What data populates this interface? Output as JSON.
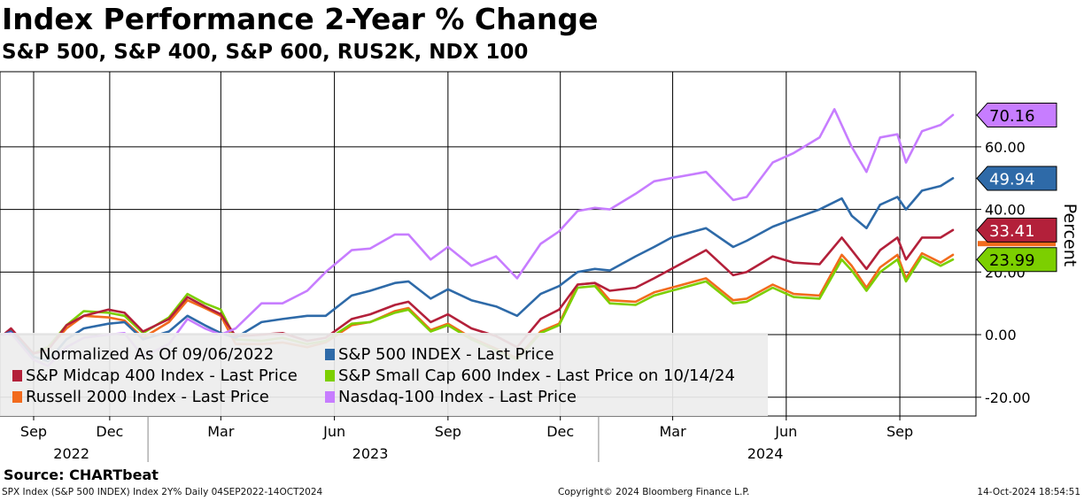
{
  "title": "Index Performance 2-Year % Change",
  "subtitle": "S&P 500, S&P 400, S&P 600, RUS2K, NDX 100",
  "source": "Source: CHARTbeat",
  "footer": {
    "left": "SPX Index (S&P 500 INDEX) Index 2Y%  Daily 04SEP2022-14OCT2024",
    "middle": "Copyright© 2024 Bloomberg Finance L.P.",
    "right": "14-Oct-2024 18:54:51"
  },
  "legend_note": "Normalized As Of 09/06/2022",
  "chart_data": {
    "type": "line",
    "title": "Index Performance 2-Year % Change",
    "subtitle": "S&P 500, S&P 400, S&P 600, RUS2K, NDX 100",
    "ylabel": "Percent",
    "ylim": [
      -26,
      84
    ],
    "yticks": [
      -20,
      0,
      20,
      40,
      60
    ],
    "ytick_labels": [
      "-20.00",
      "0.00",
      "20.00",
      "40.00",
      "60.00"
    ],
    "xlim": [
      "2022-09-06",
      "2024-10-14"
    ],
    "month_ticks": [
      {
        "date": "2022-09-01",
        "label": "Sep"
      },
      {
        "date": "2022-12-01",
        "label": "Dec"
      },
      {
        "date": "2023-03-01",
        "label": "Mar"
      },
      {
        "date": "2023-06-01",
        "label": "Jun"
      },
      {
        "date": "2023-09-01",
        "label": "Sep"
      },
      {
        "date": "2023-12-01",
        "label": "Dec"
      },
      {
        "date": "2024-03-01",
        "label": "Mar"
      },
      {
        "date": "2024-06-01",
        "label": "Jun"
      },
      {
        "date": "2024-09-01",
        "label": "Sep"
      }
    ],
    "year_labels": [
      {
        "date": "2022-10-31",
        "label": "2022"
      },
      {
        "date": "2023-06-30",
        "label": "2023"
      },
      {
        "date": "2024-05-15",
        "label": "2024"
      }
    ],
    "year_dividers": [
      "2023-01-01",
      "2024-01-01"
    ],
    "grid": true,
    "legend_position": "bottom-left",
    "series": [
      {
        "name": "S&P 500 INDEX - Last Price",
        "color": "#2e6aa8",
        "last_value": 49.94,
        "last_label": "49.94",
        "label_text_color": "#ffffff",
        "points": [
          [
            "2022-09-06",
            0
          ],
          [
            "2022-09-12",
            1
          ],
          [
            "2022-09-30",
            -7
          ],
          [
            "2022-10-12",
            -8.5
          ],
          [
            "2022-10-27",
            -1.5
          ],
          [
            "2022-11-10",
            2
          ],
          [
            "2022-11-30",
            3.5
          ],
          [
            "2022-12-13",
            4
          ],
          [
            "2022-12-28",
            -1.5
          ],
          [
            "2023-01-18",
            1
          ],
          [
            "2023-02-02",
            6
          ],
          [
            "2023-02-16",
            3
          ],
          [
            "2023-03-01",
            0.5
          ],
          [
            "2023-03-13",
            -1
          ],
          [
            "2023-04-03",
            4
          ],
          [
            "2023-04-20",
            5
          ],
          [
            "2023-05-10",
            6
          ],
          [
            "2023-05-25",
            6
          ],
          [
            "2023-06-15",
            12.5
          ],
          [
            "2023-06-30",
            14
          ],
          [
            "2023-07-20",
            16.5
          ],
          [
            "2023-07-31",
            17
          ],
          [
            "2023-08-18",
            11.5
          ],
          [
            "2023-09-01",
            14.5
          ],
          [
            "2023-09-20",
            11
          ],
          [
            "2023-10-10",
            9
          ],
          [
            "2023-10-27",
            6
          ],
          [
            "2023-11-15",
            13
          ],
          [
            "2023-11-30",
            15.5
          ],
          [
            "2023-12-15",
            20
          ],
          [
            "2023-12-29",
            21
          ],
          [
            "2024-01-10",
            20.5
          ],
          [
            "2024-01-31",
            25
          ],
          [
            "2024-02-15",
            28
          ],
          [
            "2024-02-29",
            31
          ],
          [
            "2024-03-28",
            34
          ],
          [
            "2024-04-19",
            28
          ],
          [
            "2024-04-30",
            30
          ],
          [
            "2024-05-21",
            34.5
          ],
          [
            "2024-06-07",
            37
          ],
          [
            "2024-06-28",
            40
          ],
          [
            "2024-07-16",
            43.5
          ],
          [
            "2024-07-24",
            38
          ],
          [
            "2024-08-05",
            34
          ],
          [
            "2024-08-16",
            41.5
          ],
          [
            "2024-08-30",
            44
          ],
          [
            "2024-09-06",
            40
          ],
          [
            "2024-09-19",
            46
          ],
          [
            "2024-10-04",
            47.5
          ],
          [
            "2024-10-14",
            49.94
          ]
        ]
      },
      {
        "name": "S&P Midcap 400 Index - Last Price",
        "color": "#b3203a",
        "last_value": 33.41,
        "last_label": "33.41",
        "label_text_color": "#ffffff",
        "points": [
          [
            "2022-09-06",
            0
          ],
          [
            "2022-09-12",
            2
          ],
          [
            "2022-09-30",
            -6
          ],
          [
            "2022-10-12",
            -5
          ],
          [
            "2022-10-27",
            3
          ],
          [
            "2022-11-10",
            6
          ],
          [
            "2022-11-30",
            8
          ],
          [
            "2022-12-13",
            7
          ],
          [
            "2022-12-28",
            1
          ],
          [
            "2023-01-18",
            5
          ],
          [
            "2023-02-02",
            12
          ],
          [
            "2023-02-16",
            9
          ],
          [
            "2023-03-01",
            6.5
          ],
          [
            "2023-03-13",
            -0.5
          ],
          [
            "2023-04-03",
            0
          ],
          [
            "2023-04-20",
            0.5
          ],
          [
            "2023-05-10",
            -2
          ],
          [
            "2023-05-25",
            -1
          ],
          [
            "2023-06-15",
            5
          ],
          [
            "2023-06-30",
            6.5
          ],
          [
            "2023-07-20",
            9.5
          ],
          [
            "2023-07-31",
            10.5
          ],
          [
            "2023-08-18",
            4
          ],
          [
            "2023-09-01",
            6.5
          ],
          [
            "2023-09-20",
            2
          ],
          [
            "2023-10-10",
            -0.5
          ],
          [
            "2023-10-27",
            -4
          ],
          [
            "2023-11-15",
            5
          ],
          [
            "2023-11-30",
            8
          ],
          [
            "2023-12-15",
            16
          ],
          [
            "2023-12-29",
            16.5
          ],
          [
            "2024-01-10",
            14
          ],
          [
            "2024-01-31",
            15
          ],
          [
            "2024-02-15",
            18
          ],
          [
            "2024-02-29",
            21
          ],
          [
            "2024-03-28",
            27
          ],
          [
            "2024-04-19",
            19
          ],
          [
            "2024-04-30",
            20
          ],
          [
            "2024-05-21",
            25
          ],
          [
            "2024-06-07",
            23
          ],
          [
            "2024-06-28",
            22.5
          ],
          [
            "2024-07-16",
            31
          ],
          [
            "2024-07-24",
            27
          ],
          [
            "2024-08-05",
            21
          ],
          [
            "2024-08-16",
            27
          ],
          [
            "2024-08-30",
            31
          ],
          [
            "2024-09-06",
            24
          ],
          [
            "2024-09-19",
            31
          ],
          [
            "2024-10-04",
            31
          ],
          [
            "2024-10-14",
            33.41
          ]
        ]
      },
      {
        "name": "S&P Small Cap 600 Index - Last Price on 10/14/24",
        "color": "#7ccf00",
        "last_value": 23.99,
        "last_label": "23.99",
        "label_text_color": "#000000",
        "points": [
          [
            "2022-09-06",
            0
          ],
          [
            "2022-09-12",
            1.5
          ],
          [
            "2022-09-30",
            -6
          ],
          [
            "2022-10-12",
            -4
          ],
          [
            "2022-10-27",
            3
          ],
          [
            "2022-11-10",
            7.5
          ],
          [
            "2022-11-30",
            7
          ],
          [
            "2022-12-13",
            6
          ],
          [
            "2022-12-28",
            0.5
          ],
          [
            "2023-01-18",
            5.5
          ],
          [
            "2023-02-02",
            13
          ],
          [
            "2023-02-16",
            10
          ],
          [
            "2023-03-01",
            8
          ],
          [
            "2023-03-13",
            -1.5
          ],
          [
            "2023-04-03",
            -2
          ],
          [
            "2023-04-20",
            -1
          ],
          [
            "2023-05-10",
            -3
          ],
          [
            "2023-05-25",
            -2
          ],
          [
            "2023-06-15",
            3.5
          ],
          [
            "2023-06-30",
            4
          ],
          [
            "2023-07-20",
            7
          ],
          [
            "2023-07-31",
            8
          ],
          [
            "2023-08-18",
            1
          ],
          [
            "2023-09-01",
            3
          ],
          [
            "2023-09-20",
            -1.5
          ],
          [
            "2023-10-10",
            -5
          ],
          [
            "2023-10-27",
            -8
          ],
          [
            "2023-11-15",
            0.5
          ],
          [
            "2023-11-30",
            3
          ],
          [
            "2023-12-15",
            15
          ],
          [
            "2023-12-29",
            15.5
          ],
          [
            "2024-01-10",
            10
          ],
          [
            "2024-01-31",
            9.5
          ],
          [
            "2024-02-15",
            12.5
          ],
          [
            "2024-02-29",
            14
          ],
          [
            "2024-03-28",
            17
          ],
          [
            "2024-04-19",
            10
          ],
          [
            "2024-04-30",
            10.5
          ],
          [
            "2024-05-21",
            15
          ],
          [
            "2024-06-07",
            12
          ],
          [
            "2024-06-28",
            11.5
          ],
          [
            "2024-07-16",
            24
          ],
          [
            "2024-07-24",
            20.5
          ],
          [
            "2024-08-05",
            14
          ],
          [
            "2024-08-16",
            20
          ],
          [
            "2024-08-30",
            24
          ],
          [
            "2024-09-06",
            17
          ],
          [
            "2024-09-19",
            25
          ],
          [
            "2024-10-04",
            22
          ],
          [
            "2024-10-14",
            23.99
          ]
        ]
      },
      {
        "name": "Russell 2000 Index - Last Price",
        "color": "#f26b1d",
        "last_value": null,
        "points": [
          [
            "2022-09-06",
            0
          ],
          [
            "2022-09-12",
            1
          ],
          [
            "2022-09-30",
            -6
          ],
          [
            "2022-10-12",
            -4.5
          ],
          [
            "2022-10-27",
            2
          ],
          [
            "2022-11-10",
            6
          ],
          [
            "2022-11-30",
            5.5
          ],
          [
            "2022-12-13",
            4.5
          ],
          [
            "2022-12-28",
            -1
          ],
          [
            "2023-01-18",
            4
          ],
          [
            "2023-02-02",
            11
          ],
          [
            "2023-02-16",
            8.5
          ],
          [
            "2023-03-01",
            6
          ],
          [
            "2023-03-13",
            -3
          ],
          [
            "2023-04-03",
            -3
          ],
          [
            "2023-04-20",
            -2.5
          ],
          [
            "2023-05-10",
            -4
          ],
          [
            "2023-05-25",
            -2.5
          ],
          [
            "2023-06-15",
            3
          ],
          [
            "2023-06-30",
            4
          ],
          [
            "2023-07-20",
            7.5
          ],
          [
            "2023-07-31",
            8.5
          ],
          [
            "2023-08-18",
            1.5
          ],
          [
            "2023-09-01",
            3.5
          ],
          [
            "2023-09-20",
            -1
          ],
          [
            "2023-10-10",
            -4.5
          ],
          [
            "2023-10-27",
            -7.5
          ],
          [
            "2023-11-15",
            1
          ],
          [
            "2023-11-30",
            3.5
          ],
          [
            "2023-12-15",
            16
          ],
          [
            "2023-12-29",
            16.5
          ],
          [
            "2024-01-10",
            11
          ],
          [
            "2024-01-31",
            10.5
          ],
          [
            "2024-02-15",
            13.5
          ],
          [
            "2024-02-29",
            15
          ],
          [
            "2024-03-28",
            18
          ],
          [
            "2024-04-19",
            11
          ],
          [
            "2024-04-30",
            11.5
          ],
          [
            "2024-05-21",
            16
          ],
          [
            "2024-06-07",
            13
          ],
          [
            "2024-06-28",
            12.5
          ],
          [
            "2024-07-16",
            25.5
          ],
          [
            "2024-07-24",
            22
          ],
          [
            "2024-08-05",
            15
          ],
          [
            "2024-08-16",
            21.5
          ],
          [
            "2024-08-30",
            25.5
          ],
          [
            "2024-09-06",
            18
          ],
          [
            "2024-09-19",
            26
          ],
          [
            "2024-10-04",
            23
          ],
          [
            "2024-10-14",
            25.5
          ]
        ]
      },
      {
        "name": "Nasdaq-100 Index - Last Price",
        "color": "#c77dff",
        "last_value": 70.16,
        "last_label": "70.16",
        "label_text_color": "#000000",
        "points": [
          [
            "2022-09-06",
            0
          ],
          [
            "2022-09-12",
            0.5
          ],
          [
            "2022-09-30",
            -8
          ],
          [
            "2022-10-12",
            -10
          ],
          [
            "2022-10-27",
            -4
          ],
          [
            "2022-11-10",
            -1
          ],
          [
            "2022-11-30",
            0
          ],
          [
            "2022-12-13",
            0.5
          ],
          [
            "2022-12-28",
            -7
          ],
          [
            "2023-01-18",
            -3
          ],
          [
            "2023-02-02",
            5
          ],
          [
            "2023-02-16",
            2
          ],
          [
            "2023-03-01",
            0
          ],
          [
            "2023-03-13",
            2
          ],
          [
            "2023-04-03",
            10
          ],
          [
            "2023-04-20",
            10
          ],
          [
            "2023-05-10",
            14
          ],
          [
            "2023-05-25",
            20
          ],
          [
            "2023-06-15",
            27
          ],
          [
            "2023-06-30",
            27.5
          ],
          [
            "2023-07-20",
            32
          ],
          [
            "2023-07-31",
            32
          ],
          [
            "2023-08-18",
            24
          ],
          [
            "2023-09-01",
            28
          ],
          [
            "2023-09-20",
            22
          ],
          [
            "2023-10-10",
            25
          ],
          [
            "2023-10-27",
            18
          ],
          [
            "2023-11-15",
            29
          ],
          [
            "2023-11-30",
            33
          ],
          [
            "2023-12-15",
            39.5
          ],
          [
            "2023-12-29",
            40.5
          ],
          [
            "2024-01-10",
            40
          ],
          [
            "2024-01-31",
            45
          ],
          [
            "2024-02-15",
            49
          ],
          [
            "2024-02-29",
            50
          ],
          [
            "2024-03-28",
            52
          ],
          [
            "2024-04-19",
            43
          ],
          [
            "2024-04-30",
            44
          ],
          [
            "2024-05-21",
            55
          ],
          [
            "2024-06-07",
            58
          ],
          [
            "2024-06-28",
            63
          ],
          [
            "2024-07-10",
            72
          ],
          [
            "2024-07-24",
            60
          ],
          [
            "2024-08-05",
            52
          ],
          [
            "2024-08-16",
            63
          ],
          [
            "2024-08-30",
            64
          ],
          [
            "2024-09-06",
            55
          ],
          [
            "2024-09-19",
            65
          ],
          [
            "2024-10-04",
            67
          ],
          [
            "2024-10-14",
            70.16
          ]
        ]
      }
    ]
  }
}
